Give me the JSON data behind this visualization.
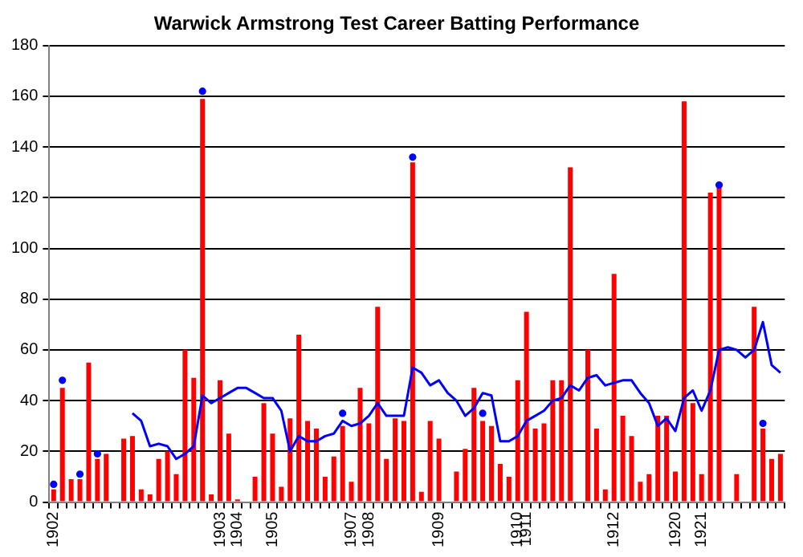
{
  "chart_data": {
    "type": "bar",
    "title": "Warwick Armstrong Test Career Batting Performance",
    "categories": [
      "1902",
      null,
      null,
      null,
      null,
      null,
      null,
      null,
      null,
      null,
      null,
      null,
      null,
      null,
      null,
      null,
      null,
      null,
      null,
      "1903",
      null,
      "1904",
      null,
      null,
      null,
      "1905",
      null,
      null,
      null,
      null,
      null,
      null,
      null,
      null,
      "1907",
      null,
      "1908",
      null,
      null,
      null,
      null,
      null,
      null,
      null,
      "1909",
      null,
      null,
      null,
      null,
      null,
      null,
      null,
      null,
      "1910",
      "1911",
      null,
      null,
      null,
      null,
      null,
      null,
      null,
      null,
      null,
      "1912",
      null,
      null,
      null,
      null,
      null,
      null,
      "1920",
      null,
      null,
      "1921",
      null,
      null,
      null,
      null,
      null,
      null,
      null,
      null,
      null
    ],
    "series": [
      {
        "type": "line",
        "color": "#0000ff",
        "values": [
          null,
          null,
          null,
          null,
          null,
          null,
          null,
          null,
          null,
          35,
          32,
          22,
          23,
          22,
          17,
          19,
          22,
          42,
          39,
          41,
          43,
          45,
          45,
          43,
          41,
          41,
          36,
          20,
          26,
          24,
          24,
          26,
          27,
          32,
          30,
          31,
          34,
          39,
          34,
          34,
          34,
          53,
          51,
          46,
          48,
          43,
          40,
          34,
          37,
          43,
          42,
          24,
          24,
          26,
          32,
          34,
          36,
          40,
          41,
          46,
          44,
          49,
          50,
          46,
          47,
          48,
          48,
          43,
          39,
          30,
          33,
          28,
          41,
          44,
          36,
          44,
          60,
          61,
          60,
          57,
          60,
          71,
          54,
          51
        ]
      },
      {
        "type": "scatter",
        "color": "#0000ff",
        "values": [
          7,
          48,
          null,
          11,
          null,
          19,
          null,
          null,
          null,
          null,
          null,
          null,
          null,
          null,
          null,
          null,
          null,
          162,
          null,
          null,
          null,
          null,
          null,
          null,
          null,
          null,
          null,
          null,
          null,
          null,
          null,
          null,
          null,
          35,
          null,
          null,
          null,
          null,
          null,
          null,
          null,
          136,
          null,
          null,
          null,
          null,
          null,
          null,
          null,
          35,
          null,
          null,
          null,
          null,
          null,
          null,
          null,
          null,
          null,
          null,
          null,
          null,
          null,
          null,
          null,
          null,
          null,
          null,
          null,
          null,
          null,
          null,
          null,
          null,
          null,
          null,
          125,
          null,
          null,
          null,
          null,
          31,
          null,
          null
        ]
      },
      {
        "color": "#ff0000",
        "values": [
          5,
          45,
          9,
          9,
          55,
          17,
          19,
          0,
          25,
          26,
          5,
          3,
          17,
          20,
          11,
          60,
          49,
          159,
          3,
          48,
          27,
          1,
          0,
          10,
          39,
          27,
          6,
          33,
          66,
          32,
          29,
          10,
          18,
          30,
          8,
          45,
          31,
          77,
          17,
          33,
          32,
          134,
          4,
          32,
          25,
          0,
          12,
          21,
          45,
          32,
          30,
          15,
          10,
          48,
          75,
          29,
          31,
          48,
          48,
          132,
          0,
          60,
          29,
          5,
          90,
          34,
          26,
          8,
          11,
          34,
          34,
          12,
          158,
          39,
          11,
          122,
          124,
          0,
          11,
          0,
          77,
          29,
          17,
          19
        ]
      }
    ],
    "ylim": [
      0,
      180
    ],
    "yticks": [
      0,
      20,
      40,
      60,
      80,
      100,
      120,
      140,
      160,
      180
    ],
    "grid": "y",
    "legend": false
  }
}
